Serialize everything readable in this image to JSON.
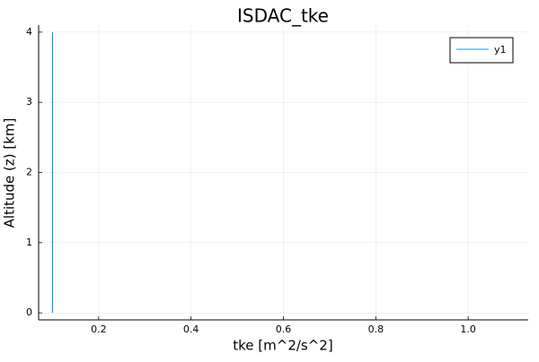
{
  "chart_data": {
    "type": "line",
    "title": "ISDAC_tke",
    "xlabel": "tke [m^2/s^2]",
    "ylabel": "Altitude (z) [km]",
    "xlim": [
      0.07,
      1.13
    ],
    "ylim": [
      -0.1,
      4.1
    ],
    "xticks": [
      0.2,
      0.4,
      0.6,
      0.8,
      1.0
    ],
    "xtick_labels": [
      "0.2",
      "0.4",
      "0.6",
      "0.8",
      "1.0"
    ],
    "yticks": [
      0,
      1,
      2,
      3,
      4
    ],
    "ytick_labels": [
      "0",
      "1",
      "2",
      "3",
      "4"
    ],
    "grid": true,
    "legend": {
      "position": "top-right"
    },
    "series": [
      {
        "name": "y1",
        "color": "#009af9",
        "points": [
          {
            "x": 0.1,
            "y": 0
          },
          {
            "x": 0.1,
            "y": 4
          }
        ]
      }
    ]
  }
}
